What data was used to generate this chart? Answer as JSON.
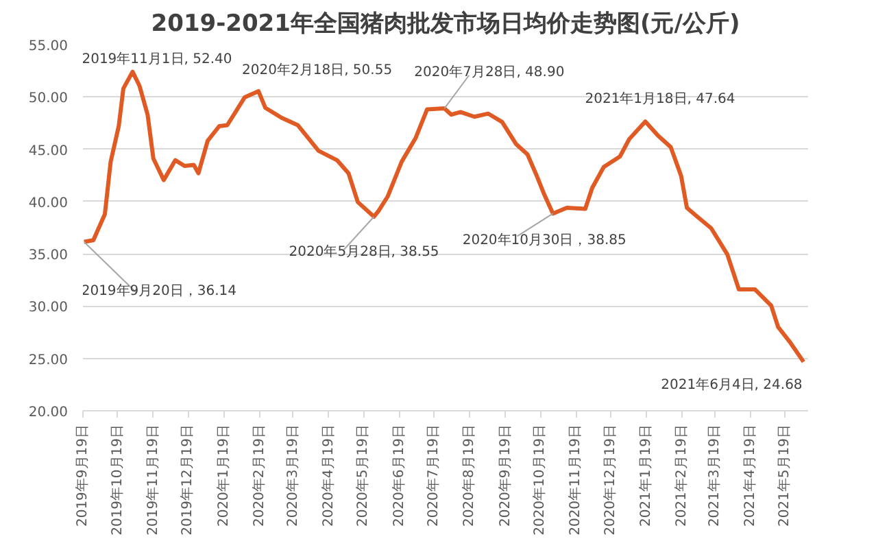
{
  "chart_data": {
    "type": "line",
    "title": "2019-2021年全国猪肉批发市场日均价走势图(元/公斤)",
    "x": [
      "2019-09-20",
      "2019-09-28",
      "2019-10-08",
      "2019-10-13",
      "2019-10-20",
      "2019-10-24",
      "2019-11-01",
      "2019-11-07",
      "2019-11-14",
      "2019-11-19",
      "2019-11-28",
      "2019-12-08",
      "2019-12-16",
      "2019-12-24",
      "2019-12-28",
      "2020-01-05",
      "2020-01-15",
      "2020-01-22",
      "2020-02-06",
      "2020-02-18",
      "2020-02-24",
      "2020-03-09",
      "2020-03-23",
      "2020-04-10",
      "2020-04-26",
      "2020-05-06",
      "2020-05-14",
      "2020-05-28",
      "2020-06-01",
      "2020-06-09",
      "2020-06-21",
      "2020-07-03",
      "2020-07-13",
      "2020-07-28",
      "2020-08-03",
      "2020-08-11",
      "2020-08-23",
      "2020-09-04",
      "2020-09-16",
      "2020-09-28",
      "2020-10-08",
      "2020-10-16",
      "2020-10-22",
      "2020-10-30",
      "2020-11-11",
      "2020-11-27",
      "2020-12-03",
      "2020-12-13",
      "2020-12-27",
      "2021-01-04",
      "2021-01-18",
      "2021-01-29",
      "2021-02-09",
      "2021-02-18",
      "2021-02-23",
      "2021-03-04",
      "2021-03-16",
      "2021-03-30",
      "2021-04-09",
      "2021-04-23",
      "2021-05-07",
      "2021-05-13",
      "2021-05-23",
      "2021-06-04"
    ],
    "series": [
      {
        "color": "#e05a24",
        "values": [
          36.14,
          36.3,
          38.8,
          43.8,
          47.2,
          50.8,
          52.4,
          51.05,
          48.3,
          44.1,
          42.05,
          43.95,
          43.4,
          43.5,
          42.7,
          45.8,
          47.2,
          47.3,
          49.95,
          50.55,
          48.95,
          48.0,
          47.3,
          44.85,
          43.95,
          42.7,
          39.95,
          38.55,
          39.1,
          40.5,
          43.8,
          46.05,
          48.8,
          48.9,
          48.3,
          48.55,
          48.1,
          48.4,
          47.6,
          45.5,
          44.5,
          42.45,
          40.8,
          38.85,
          39.4,
          39.3,
          41.3,
          43.3,
          44.3,
          45.95,
          47.64,
          46.3,
          45.2,
          42.45,
          39.4,
          38.55,
          37.45,
          34.95,
          31.6,
          31.6,
          30.05,
          28.0,
          26.6,
          24.68
        ]
      }
    ],
    "xlim": [
      "2019-09-19",
      "2021-06-08"
    ],
    "xticks": [
      {
        "value": "2019-09-19",
        "label": "2019年9月19日"
      },
      {
        "value": "2019-10-19",
        "label": "2019年10月19日"
      },
      {
        "value": "2019-11-19",
        "label": "2019年11月19日"
      },
      {
        "value": "2019-12-19",
        "label": "2019年12月19日"
      },
      {
        "value": "2020-01-19",
        "label": "2020年1月19日"
      },
      {
        "value": "2020-02-19",
        "label": "2020年2月19日"
      },
      {
        "value": "2020-03-19",
        "label": "2020年3月19日"
      },
      {
        "value": "2020-04-19",
        "label": "2020年4月19日"
      },
      {
        "value": "2020-05-19",
        "label": "2020年5月19日"
      },
      {
        "value": "2020-06-19",
        "label": "2020年6月19日"
      },
      {
        "value": "2020-07-19",
        "label": "2020年7月19日"
      },
      {
        "value": "2020-08-19",
        "label": "2020年8月19日"
      },
      {
        "value": "2020-09-19",
        "label": "2020年9月19日"
      },
      {
        "value": "2020-10-19",
        "label": "2020年10月19日"
      },
      {
        "value": "2020-11-19",
        "label": "2020年11月19日"
      },
      {
        "value": "2020-12-19",
        "label": "2020年12月19日"
      },
      {
        "value": "2021-01-19",
        "label": "2021年1月19日"
      },
      {
        "value": "2021-02-19",
        "label": "2021年2月19日"
      },
      {
        "value": "2021-03-19",
        "label": "2021年3月19日"
      },
      {
        "value": "2021-04-19",
        "label": "2021年4月19日"
      },
      {
        "value": "2021-05-19",
        "label": "2021年5月19日"
      }
    ],
    "ylim": [
      20,
      55
    ],
    "yticks": [
      {
        "value": 20,
        "label": "20.00"
      },
      {
        "value": 25,
        "label": "25.00"
      },
      {
        "value": 30,
        "label": "30.00"
      },
      {
        "value": 35,
        "label": "35.00"
      },
      {
        "value": 40,
        "label": "40.00"
      },
      {
        "value": 45,
        "label": "45.00"
      },
      {
        "value": 50,
        "label": "50.00"
      },
      {
        "value": 55,
        "label": "55.00"
      }
    ],
    "grid": "y",
    "annotations": [
      {
        "text": "2019年9月20日，36.14",
        "x": "2019-09-20",
        "y": 36.14
      },
      {
        "text": "2019年11月1日, 52.40",
        "x": "2019-11-01",
        "y": 52.4
      },
      {
        "text": "2020年2月18日, 50.55",
        "x": "2020-02-18",
        "y": 50.55
      },
      {
        "text": "2020年5月28日, 38.55",
        "x": "2020-05-28",
        "y": 38.55
      },
      {
        "text": "2020年7月28日, 48.90",
        "x": "2020-07-28",
        "y": 48.9
      },
      {
        "text": "2020年10月30日，38.85",
        "x": "2020-10-30",
        "y": 38.85
      },
      {
        "text": "2021年1月18日, 47.64",
        "x": "2021-01-18",
        "y": 47.64
      },
      {
        "text": "2021年6月4日, 24.68",
        "x": "2021-06-04",
        "y": 24.68
      }
    ]
  }
}
